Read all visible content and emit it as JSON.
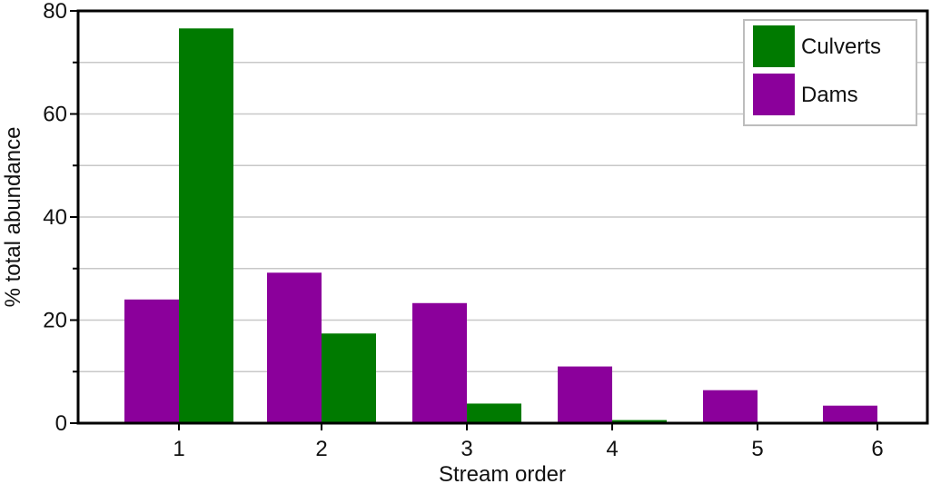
{
  "chart_data": {
    "type": "bar",
    "categories": [
      "1",
      "2",
      "3",
      "4",
      "5",
      "6"
    ],
    "series": [
      {
        "name": "Dams",
        "color": "#8b009b",
        "values": [
          24,
          29.2,
          23.3,
          11,
          6.4,
          3.4
        ]
      },
      {
        "name": "Culverts",
        "color": "#007a00",
        "values": [
          76.6,
          17.4,
          3.8,
          0.6,
          0,
          0
        ]
      }
    ],
    "title": "",
    "xlabel": "Stream order",
    "ylabel": "% total abundance",
    "ylim": [
      0,
      80
    ],
    "yticks": [
      "0",
      "20",
      "40",
      "60",
      "80"
    ],
    "grid": true,
    "legend": {
      "placement": "top-right",
      "entries": [
        {
          "name": "Culverts",
          "color": "#007a00"
        },
        {
          "name": "Dams",
          "color": "#8b009b"
        }
      ]
    }
  }
}
